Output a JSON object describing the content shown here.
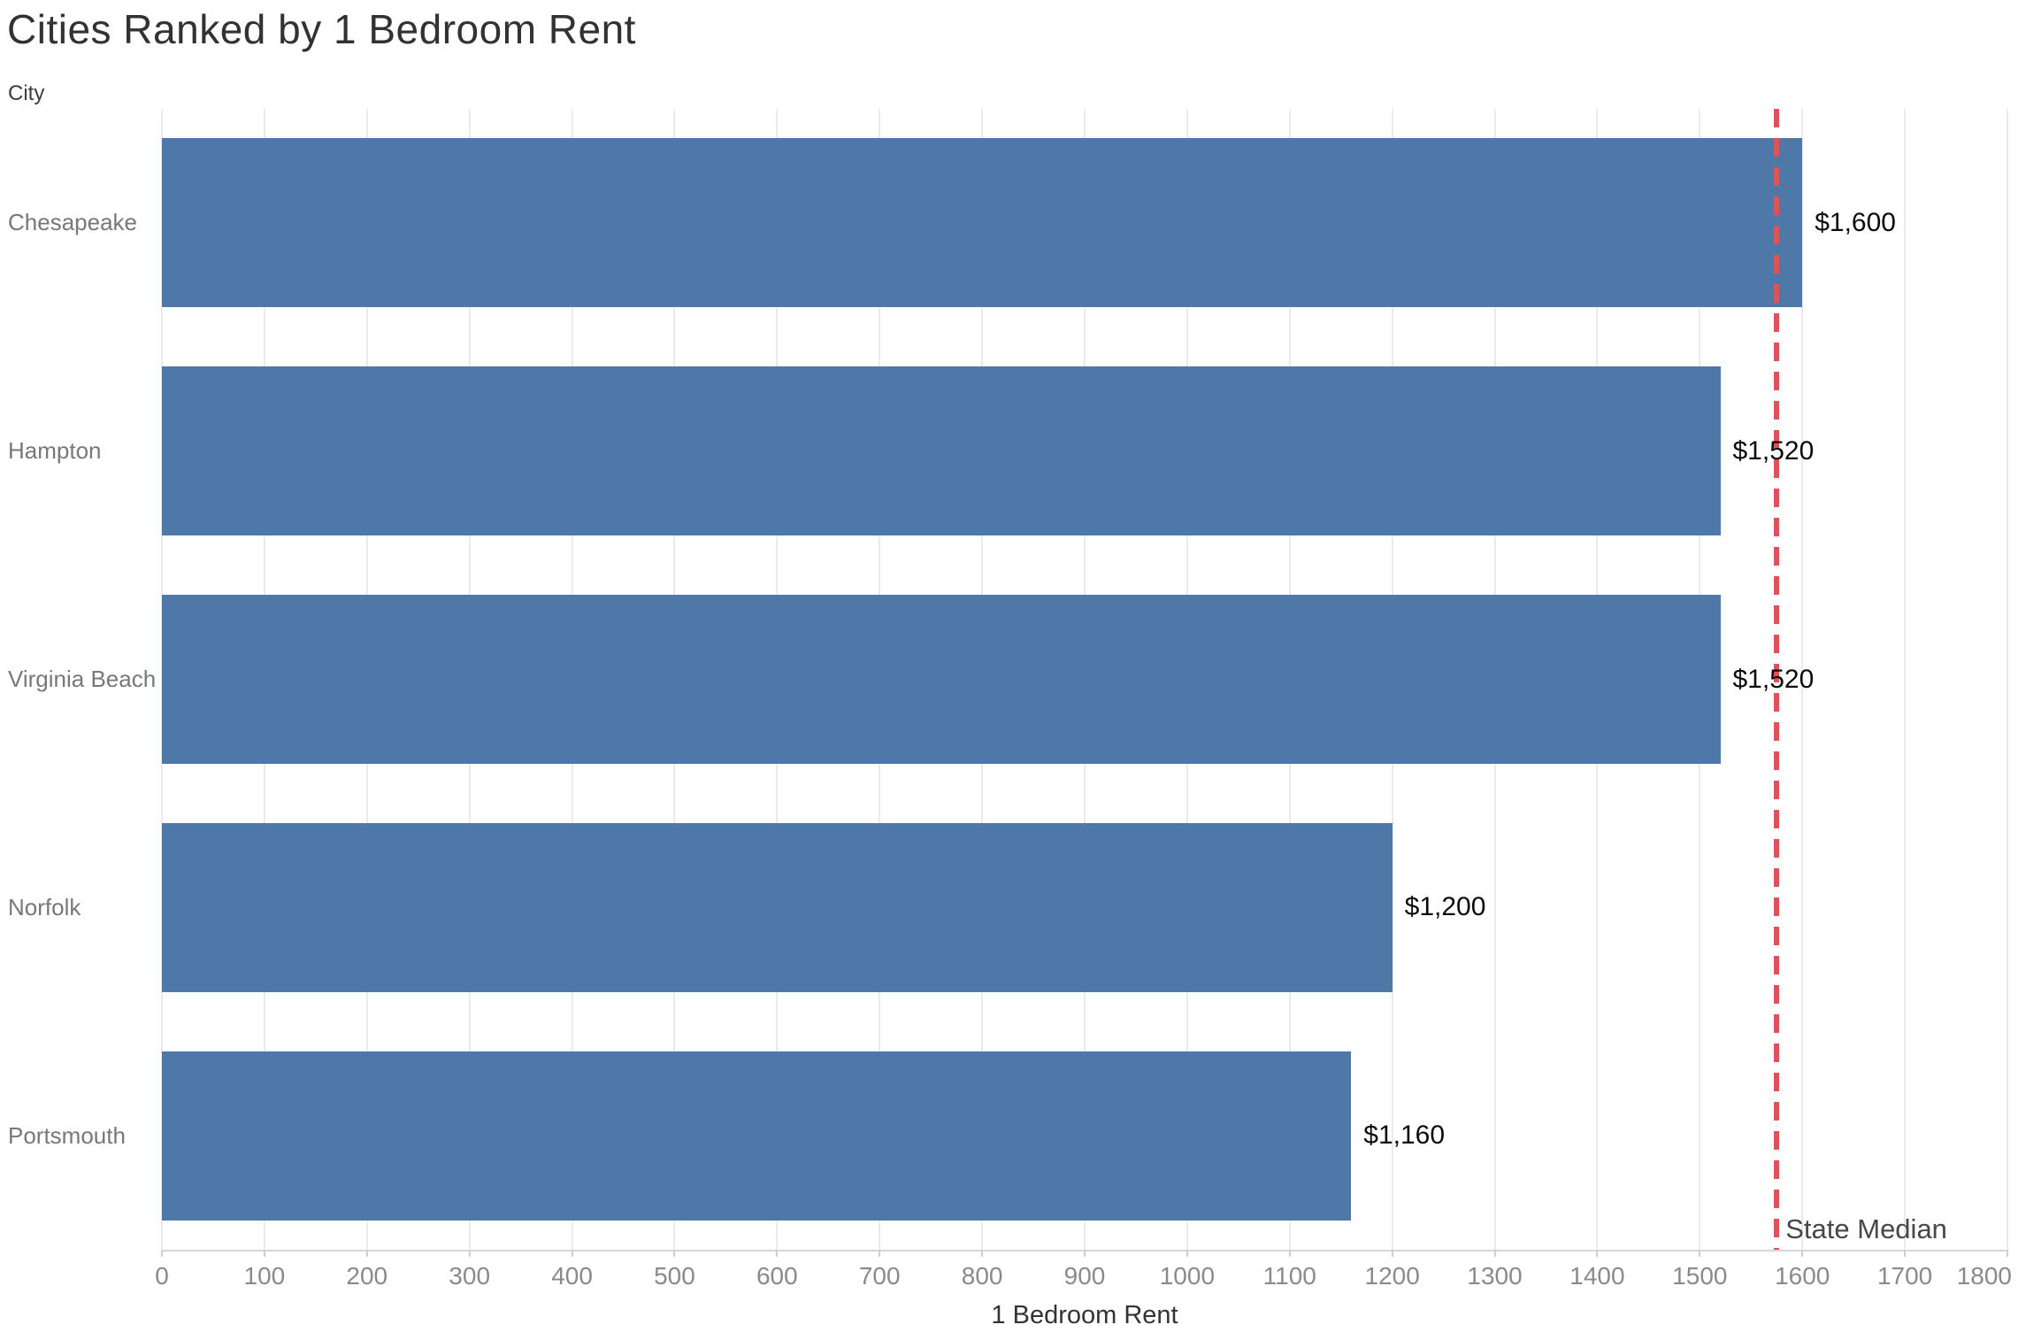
{
  "chart_data": {
    "type": "bar",
    "orientation": "horizontal",
    "title": "Cities Ranked by 1 Bedroom Rent",
    "ylabel": "City",
    "xlabel": "1 Bedroom Rent",
    "categories": [
      "Chesapeake",
      "Hampton",
      "Virginia Beach",
      "Norfolk",
      "Portsmouth"
    ],
    "values": [
      1600,
      1520,
      1520,
      1200,
      1160
    ],
    "value_labels": [
      "$1,600",
      "$1,520",
      "$1,520",
      "$1,200",
      "$1,160"
    ],
    "xlim": [
      0,
      1800
    ],
    "xticks": [
      0,
      100,
      200,
      300,
      400,
      500,
      600,
      700,
      800,
      900,
      1000,
      1100,
      1200,
      1300,
      1400,
      1500,
      1600,
      1700,
      1800
    ],
    "grid": "vertical",
    "legend": "none",
    "reference_line": {
      "label": "State Median",
      "value": 1575,
      "style": "dashed",
      "color": "#dd5359"
    },
    "colors": {
      "bar": "#4d78a8",
      "title_text": "#323232",
      "axis_text": "#8a8a8a",
      "category_text": "#787878",
      "value_text": "#0b0b0b",
      "gridline": "#ebebeb",
      "axis_line": "#d6d6d6"
    }
  }
}
